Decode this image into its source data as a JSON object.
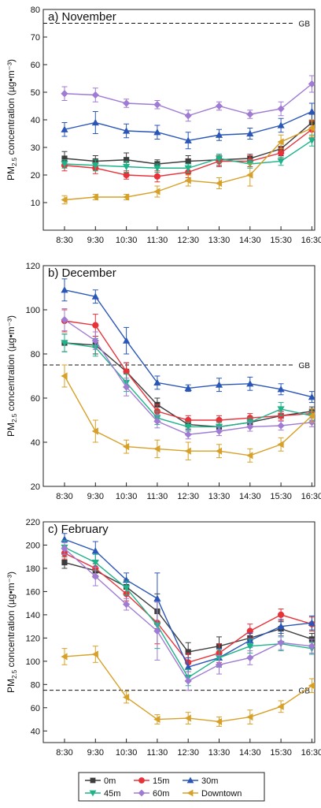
{
  "legend": [
    {
      "name": "0m",
      "color": "#3d3d3d",
      "marker": "square"
    },
    {
      "name": "15m",
      "color": "#e8323a",
      "marker": "circle"
    },
    {
      "name": "30m",
      "color": "#2a56b8",
      "marker": "triangle-up"
    },
    {
      "name": "45m",
      "color": "#1fb389",
      "marker": "triangle-down"
    },
    {
      "name": "60m",
      "color": "#a07bd4",
      "marker": "diamond"
    },
    {
      "name": "Downtown",
      "color": "#d7a028",
      "marker": "triangle-left"
    }
  ],
  "chart_data": [
    {
      "type": "line",
      "title": "a) November",
      "ylabel": "PM2.5 concentration (µg•m⁻³)",
      "ylabel_main": "PM",
      "ylabel_sub": "2.5",
      "ylabel_rest": " concentration (µg•m⁻³)",
      "categories": [
        "8:30",
        "9:30",
        "10:30",
        "11:30",
        "12:30",
        "13:30",
        "14:30",
        "15:30",
        "16:30"
      ],
      "ylim": [
        0,
        80
      ],
      "yticks": [
        10,
        20,
        30,
        40,
        50,
        60,
        70,
        80
      ],
      "reference": {
        "label": "GB",
        "value": 75
      },
      "series": [
        {
          "name": "0m",
          "values": [
            26,
            25,
            25.5,
            24,
            25,
            25.5,
            26,
            29.5,
            39
          ],
          "err": [
            2.5,
            2,
            2.5,
            1.5,
            2,
            2,
            1.5,
            2.5,
            3
          ]
        },
        {
          "name": "15m",
          "values": [
            23.5,
            22.5,
            20,
            19.5,
            21,
            25,
            25,
            28,
            36.5
          ],
          "err": [
            2,
            2,
            1.5,
            2,
            2,
            2,
            2,
            2,
            3
          ]
        },
        {
          "name": "30m",
          "values": [
            36.5,
            39,
            36,
            35.5,
            32.5,
            34.5,
            35,
            38,
            43
          ],
          "err": [
            2.5,
            4,
            2.5,
            2.5,
            3,
            2,
            2,
            2.5,
            3
          ]
        },
        {
          "name": "45m",
          "values": [
            24,
            23.5,
            23,
            22.5,
            22.5,
            26,
            24,
            25,
            32.5
          ],
          "err": [
            1.5,
            2,
            2,
            1.5,
            1.5,
            1.5,
            1.5,
            1.5,
            2
          ]
        },
        {
          "name": "60m",
          "values": [
            49.5,
            49,
            46,
            45.5,
            41.5,
            45,
            42,
            44,
            53
          ],
          "err": [
            2.5,
            2.5,
            1.5,
            1.5,
            2,
            1.5,
            1.5,
            2.5,
            3
          ]
        },
        {
          "name": "Downtown",
          "values": [
            11,
            12,
            12,
            14,
            18,
            17,
            20,
            32,
            37
          ],
          "err": [
            1.5,
            1,
            1,
            2,
            2,
            2,
            4,
            2.5,
            3
          ]
        }
      ]
    },
    {
      "type": "line",
      "title": "b) December",
      "ylabel": "PM2.5 concentration (µg•m⁻³)",
      "ylabel_main": "PM",
      "ylabel_sub": "2.5",
      "ylabel_rest": " concentration (µg•m⁻³)",
      "categories": [
        "8:30",
        "9:30",
        "10:30",
        "11:30",
        "12:30",
        "13:30",
        "14:30",
        "15:30",
        "16:30"
      ],
      "ylim": [
        20,
        120
      ],
      "yticks": [
        20,
        40,
        60,
        80,
        100,
        120
      ],
      "reference": {
        "label": "GB",
        "value": 75
      },
      "series": [
        {
          "name": "0m",
          "values": [
            85,
            84,
            72,
            57,
            48,
            47,
            49,
            52,
            54
          ],
          "err": [
            4,
            4,
            4,
            3,
            2,
            2,
            2,
            2,
            2
          ]
        },
        {
          "name": "15m",
          "values": [
            95,
            93,
            72,
            54,
            50,
            50,
            51,
            52,
            53
          ],
          "err": [
            5,
            5,
            4,
            3,
            2,
            2,
            2,
            2,
            2
          ]
        },
        {
          "name": "30m",
          "values": [
            109,
            106,
            86,
            67,
            64.5,
            66,
            66.5,
            64,
            60.5
          ],
          "err": [
            5,
            3,
            6,
            3,
            1.5,
            3,
            3,
            2.5,
            2.5
          ]
        },
        {
          "name": "45m",
          "values": [
            85,
            83,
            67,
            51,
            47,
            47,
            49,
            55,
            52
          ],
          "err": [
            4,
            4,
            4,
            3,
            2,
            2,
            2,
            3,
            2
          ]
        },
        {
          "name": "60m",
          "values": [
            95.5,
            86,
            65,
            49.5,
            43.5,
            45,
            47,
            47.5,
            49
          ],
          "err": [
            5,
            4,
            4,
            3,
            2,
            2,
            2,
            2,
            2
          ]
        },
        {
          "name": "Downtown",
          "values": [
            70,
            45,
            38,
            37,
            36,
            36,
            34,
            39,
            52
          ],
          "err": [
            5,
            5,
            3,
            4,
            4,
            3,
            3,
            3,
            3
          ]
        }
      ]
    },
    {
      "type": "line",
      "title": "c) February",
      "ylabel": "PM2.5 concentration (µg•m⁻³)",
      "ylabel_main": "PM",
      "ylabel_sub": "2.5",
      "ylabel_rest": " concentration (µg•m⁻³)",
      "categories": [
        "8:30",
        "9:30",
        "10:30",
        "11:30",
        "12:30",
        "13:30",
        "14:30",
        "15:30",
        "16:30"
      ],
      "ylim": [
        30,
        220
      ],
      "yticks": [
        40,
        60,
        80,
        100,
        120,
        140,
        160,
        180,
        200,
        220
      ],
      "reference": {
        "label": "GB",
        "value": 75
      },
      "series": [
        {
          "name": "0m",
          "values": [
            185,
            178,
            164,
            143,
            108,
            113,
            120,
            128,
            119
          ],
          "err": [
            5,
            6,
            6,
            15,
            8,
            8,
            6,
            6,
            5
          ]
        },
        {
          "name": "15m",
          "values": [
            193,
            180,
            158,
            133,
            99,
            107,
            126,
            140,
            132
          ],
          "err": [
            5,
            6,
            6,
            18,
            8,
            8,
            6,
            5,
            6
          ]
        },
        {
          "name": "30m",
          "values": [
            205,
            195,
            170,
            154,
            95,
            103,
            118,
            130,
            133
          ],
          "err": [
            5,
            8,
            6,
            22,
            8,
            8,
            6,
            6,
            6
          ]
        },
        {
          "name": "45m",
          "values": [
            198,
            185,
            163,
            131,
            86,
            103,
            113,
            115,
            111
          ],
          "err": [
            6,
            7,
            6,
            20,
            7,
            7,
            6,
            6,
            5
          ]
        },
        {
          "name": "60m",
          "values": [
            197,
            173,
            149,
            126,
            83,
            97,
            103,
            116,
            113
          ],
          "err": [
            5,
            8,
            5,
            25,
            8,
            8,
            6,
            6,
            6
          ]
        },
        {
          "name": "Downtown",
          "values": [
            104,
            106,
            69,
            50,
            51,
            48,
            52,
            61,
            79
          ],
          "err": [
            7,
            7,
            5,
            4,
            5,
            4,
            6,
            5,
            6
          ]
        }
      ]
    }
  ]
}
